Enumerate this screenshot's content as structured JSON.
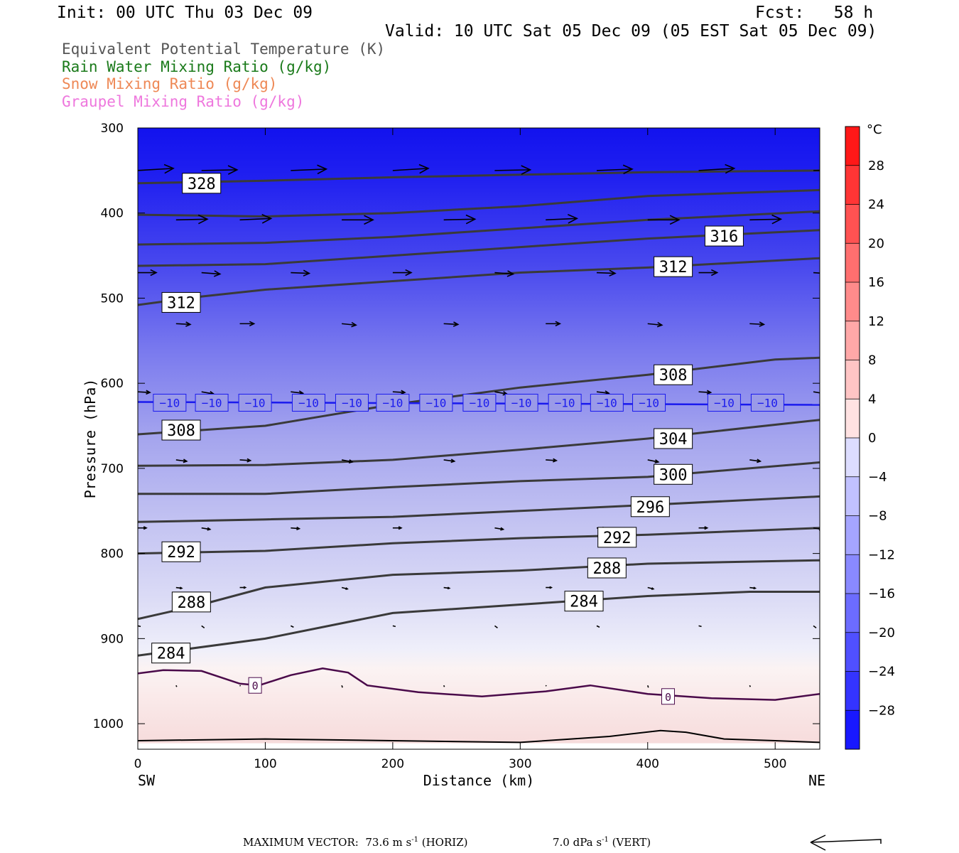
{
  "header": {
    "init": "Init: 00 UTC Thu 03 Dec 09",
    "fcst": "Fcst:   58 h",
    "valid": "Valid: 10 UTC Sat 05 Dec 09 (05 EST Sat 05 Dec 09)"
  },
  "legend": [
    {
      "label": "Equivalent Potential Temperature (K)",
      "color": "#555555"
    },
    {
      "label": "Rain Water Mixing Ratio (g/kg)",
      "color": "#1a7a1a"
    },
    {
      "label": "Snow Mixing Ratio (g/kg)",
      "color": "#ee8855"
    },
    {
      "label": "Graupel Mixing Ratio (g/kg)",
      "color": "#ee77dd"
    }
  ],
  "footer": {
    "prefix": "MAXIMUM VECTOR:  73.6 m s",
    "horiz_suffix": " (HORIZ)",
    "vert_prefix": "7.0 dPa s",
    "vert_suffix": " (VERT)",
    "sup": "-1"
  },
  "chart_data": {
    "type": "cross-section",
    "xlabel": "Distance (km)",
    "ylabel": "Pressure (hPa)",
    "x_ticks": [
      0,
      100,
      200,
      300,
      400,
      500
    ],
    "y_ticks": [
      300,
      400,
      500,
      600,
      700,
      800,
      900,
      1000
    ],
    "xlim": [
      0,
      535
    ],
    "ylim": [
      300,
      1030
    ],
    "x_end_labels": {
      "left": "SW",
      "right": "NE"
    },
    "colorbar": {
      "unit": "°C",
      "ticks": [
        28,
        24,
        20,
        16,
        12,
        8,
        4,
        0,
        -4,
        -8,
        -12,
        -16,
        -20,
        -24,
        -28
      ],
      "range": [
        -32,
        32
      ]
    },
    "theta_e_contours": [
      {
        "label": "328",
        "points": [
          [
            0,
            365
          ],
          [
            100,
            362
          ],
          [
            200,
            358
          ],
          [
            300,
            355
          ],
          [
            400,
            352
          ],
          [
            535,
            350
          ]
        ]
      },
      {
        "label": "",
        "points": [
          [
            0,
            402
          ],
          [
            100,
            404
          ],
          [
            200,
            400
          ],
          [
            300,
            392
          ],
          [
            400,
            380
          ],
          [
            535,
            373
          ]
        ]
      },
      {
        "label": "316",
        "points": [
          [
            0,
            437
          ],
          [
            100,
            435
          ],
          [
            200,
            428
          ],
          [
            300,
            418
          ],
          [
            400,
            408
          ],
          [
            535,
            398
          ]
        ]
      },
      {
        "label": "312",
        "points": [
          [
            0,
            462
          ],
          [
            100,
            460
          ],
          [
            200,
            450
          ],
          [
            300,
            440
          ],
          [
            400,
            430
          ],
          [
            535,
            420
          ]
        ]
      },
      {
        "label": "",
        "points": [
          [
            0,
            508
          ],
          [
            50,
            498
          ],
          [
            100,
            490
          ],
          [
            200,
            480
          ],
          [
            300,
            470
          ],
          [
            400,
            464
          ],
          [
            535,
            453
          ]
        ]
      },
      {
        "label": "308",
        "points": [
          [
            0,
            660
          ],
          [
            100,
            650
          ],
          [
            200,
            625
          ],
          [
            300,
            605
          ],
          [
            400,
            590
          ],
          [
            500,
            572
          ],
          [
            535,
            570
          ]
        ]
      },
      {
        "label": "304",
        "points": [
          [
            0,
            697
          ],
          [
            100,
            696
          ],
          [
            200,
            690
          ],
          [
            300,
            678
          ],
          [
            400,
            665
          ],
          [
            535,
            643
          ]
        ]
      },
      {
        "label": "300",
        "points": [
          [
            0,
            730
          ],
          [
            100,
            730
          ],
          [
            200,
            722
          ],
          [
            300,
            715
          ],
          [
            400,
            710
          ],
          [
            535,
            693
          ]
        ]
      },
      {
        "label": "296",
        "points": [
          [
            0,
            763
          ],
          [
            100,
            760
          ],
          [
            200,
            757
          ],
          [
            300,
            750
          ],
          [
            400,
            743
          ],
          [
            535,
            733
          ]
        ]
      },
      {
        "label": "292",
        "points": [
          [
            0,
            800
          ],
          [
            100,
            797
          ],
          [
            200,
            788
          ],
          [
            300,
            782
          ],
          [
            400,
            778
          ],
          [
            535,
            770
          ]
        ]
      },
      {
        "label": "288",
        "points": [
          [
            0,
            877
          ],
          [
            50,
            860
          ],
          [
            100,
            840
          ],
          [
            200,
            825
          ],
          [
            300,
            820
          ],
          [
            400,
            812
          ],
          [
            535,
            808
          ]
        ]
      },
      {
        "label": "284",
        "points": [
          [
            0,
            920
          ],
          [
            100,
            900
          ],
          [
            200,
            870
          ],
          [
            300,
            860
          ],
          [
            400,
            850
          ],
          [
            480,
            845
          ],
          [
            535,
            845
          ]
        ]
      }
    ],
    "contour_labels": [
      {
        "text": "328",
        "x": 50,
        "p": 365
      },
      {
        "text": "316",
        "x": 460,
        "p": 427
      },
      {
        "text": "312",
        "x": 420,
        "p": 463
      },
      {
        "text": "312",
        "x": 34,
        "p": 505
      },
      {
        "text": "308",
        "x": 420,
        "p": 590
      },
      {
        "text": "308",
        "x": 34,
        "p": 655
      },
      {
        "text": "304",
        "x": 420,
        "p": 665
      },
      {
        "text": "300",
        "x": 420,
        "p": 707
      },
      {
        "text": "296",
        "x": 402,
        "p": 745
      },
      {
        "text": "292",
        "x": 376,
        "p": 781
      },
      {
        "text": "292",
        "x": 34,
        "p": 798
      },
      {
        "text": "288",
        "x": 368,
        "p": 817
      },
      {
        "text": "288",
        "x": 42,
        "p": 857
      },
      {
        "text": "284",
        "x": 350,
        "p": 856
      },
      {
        "text": "284",
        "x": 26,
        "p": 917
      }
    ],
    "isotherm_minus10": {
      "label": "−10",
      "p": 622,
      "label_x": [
        25,
        58,
        92,
        134,
        168,
        200,
        234,
        268,
        301,
        335,
        368,
        401,
        460,
        494
      ]
    },
    "isotherm_zero": {
      "label": "0",
      "points": [
        [
          0,
          941
        ],
        [
          20,
          937
        ],
        [
          50,
          938
        ],
        [
          80,
          953
        ],
        [
          95,
          955
        ],
        [
          120,
          943
        ],
        [
          145,
          935
        ],
        [
          165,
          940
        ],
        [
          180,
          955
        ],
        [
          220,
          963
        ],
        [
          270,
          968
        ],
        [
          320,
          962
        ],
        [
          355,
          955
        ],
        [
          400,
          965
        ],
        [
          450,
          970
        ],
        [
          500,
          972
        ],
        [
          535,
          965
        ]
      ],
      "label_positions": [
        [
          92,
          955
        ],
        [
          416,
          968
        ]
      ]
    },
    "surface_line": [
      [
        0,
        1020
      ],
      [
        100,
        1018
      ],
      [
        200,
        1020
      ],
      [
        300,
        1022
      ],
      [
        340,
        1018
      ],
      [
        370,
        1015
      ],
      [
        410,
        1008
      ],
      [
        430,
        1010
      ],
      [
        460,
        1018
      ],
      [
        500,
        1020
      ],
      [
        535,
        1022
      ]
    ],
    "wind_vectors": [
      {
        "p": 350,
        "u": 50,
        "w": -2
      },
      {
        "p": 408,
        "u": 44,
        "w": -1
      },
      {
        "p": 470,
        "u": 26,
        "w": 1
      },
      {
        "p": 530,
        "u": 20,
        "w": 1
      },
      {
        "p": 610,
        "u": 17,
        "w": 2
      },
      {
        "p": 690,
        "u": 15,
        "w": 2
      },
      {
        "p": 770,
        "u": 12,
        "w": 1
      },
      {
        "p": 840,
        "u": 8,
        "w": 1
      },
      {
        "p": 885,
        "u": 4,
        "w": 2
      },
      {
        "p": 955,
        "u": 1,
        "w": 2
      }
    ]
  }
}
